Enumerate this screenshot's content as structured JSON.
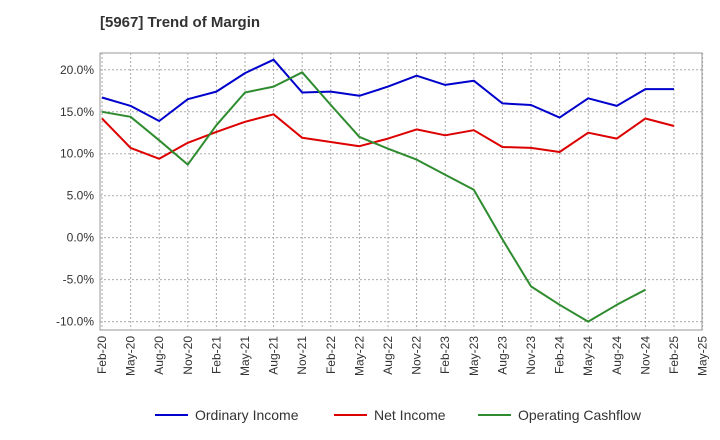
{
  "chart_data": {
    "type": "line",
    "title": "[5967]  Trend of Margin",
    "xlabel": "",
    "ylabel": "",
    "x_tick_labels": [
      "Feb-20",
      "May-20",
      "Aug-20",
      "Nov-20",
      "Feb-21",
      "May-21",
      "Aug-21",
      "Nov-21",
      "Feb-22",
      "May-22",
      "Aug-22",
      "Nov-22",
      "Feb-23",
      "May-23",
      "Aug-23",
      "Nov-23",
      "Feb-24",
      "May-24",
      "Aug-24",
      "Nov-24",
      "Feb-25",
      "May-25"
    ],
    "y_ticks": [
      -10,
      -5,
      0,
      5,
      10,
      15,
      20
    ],
    "y_tick_labels": [
      "-10.0%",
      "-5.0%",
      "0.0%",
      "5.0%",
      "10.0%",
      "15.0%",
      "20.0%"
    ],
    "ylim": [
      -11,
      22
    ],
    "grid": true,
    "legend_position": "bottom",
    "series": [
      {
        "name": "Ordinary Income",
        "color": "#0000cc",
        "values": [
          16.7,
          15.7,
          13.9,
          16.5,
          17.4,
          19.6,
          21.2,
          17.3,
          17.4,
          16.9,
          18.0,
          19.3,
          18.2,
          18.7,
          16.0,
          15.8,
          14.3,
          16.6,
          15.7,
          17.7,
          17.7,
          null
        ]
      },
      {
        "name": "Net Income",
        "color": "#dd0000",
        "values": [
          14.2,
          10.7,
          9.4,
          11.3,
          12.6,
          13.8,
          14.7,
          11.9,
          11.4,
          10.9,
          11.8,
          12.9,
          12.2,
          12.8,
          10.8,
          10.7,
          10.2,
          12.5,
          11.8,
          14.2,
          13.3,
          null
        ]
      },
      {
        "name": "Operating Cashflow",
        "color": "#2e8b2e",
        "values": [
          15.0,
          14.4,
          11.6,
          8.7,
          13.4,
          17.3,
          18.0,
          19.7,
          15.8,
          12.0,
          10.6,
          9.3,
          7.5,
          5.7,
          -0.2,
          -5.8,
          -8.0,
          -10.0,
          -8.0,
          -6.2,
          null,
          null
        ]
      }
    ]
  }
}
